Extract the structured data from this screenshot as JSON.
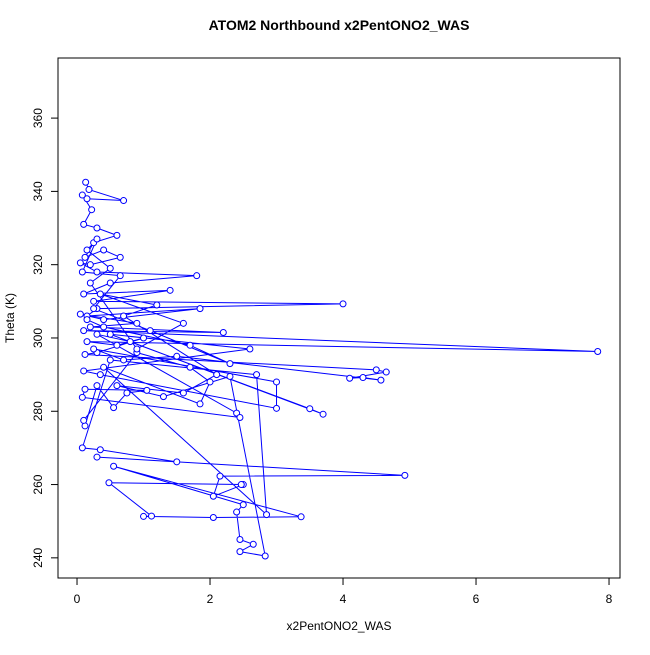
{
  "chart_data": {
    "type": "line",
    "title": "ATOM2 Northbound x2PentONO2_WAS",
    "x_label": "x2PentONO2_WAS",
    "y_label": "Theta (K)",
    "color": "#0000ff",
    "x": [
      0.13,
      0.18,
      0.7,
      0.15,
      0.08,
      0.22,
      0.1,
      0.3,
      0.6,
      0.25,
      0.12,
      0.4,
      0.65,
      0.2,
      0.05,
      0.3,
      1.8,
      0.5,
      0.1,
      1.4,
      0.25,
      4.0,
      0.3,
      0.15,
      1.85,
      0.4,
      0.05,
      0.9,
      0.2,
      2.2,
      0.1,
      7.83,
      0.15,
      0.6,
      1.0,
      0.3,
      0.12,
      4.5,
      4.65,
      4.1,
      4.3,
      4.57,
      1.5,
      0.7,
      0.25,
      3.0,
      3.0,
      0.35,
      0.1,
      2.6,
      0.5,
      3.5,
      3.7,
      0.8,
      0.3,
      2.4,
      2.45,
      0.08,
      0.12,
      1.05,
      0.75,
      0.55,
      0.3,
      0.12,
      0.1,
      0.9,
      1.7,
      2.0,
      1.85,
      0.4,
      2.85,
      2.7,
      0.5,
      0.08,
      0.35,
      1.5,
      0.3,
      4.93,
      2.15,
      2.05,
      2.5,
      2.47,
      0.48,
      1.12,
      1.0,
      2.05,
      3.37,
      0.55,
      2.5,
      2.4,
      2.45,
      2.65,
      2.45,
      2.83,
      2.3,
      1.3,
      0.6,
      1.6,
      2.1,
      0.7,
      1.2,
      0.35,
      1.6,
      0.9,
      0.2,
      0.5,
      0.15,
      0.3,
      0.08,
      0.65,
      0.25,
      1.1,
      2.3,
      1.7,
      0.4,
      0.15
    ],
    "values": [
      342.5,
      340.5,
      337.5,
      338,
      339,
      335,
      331,
      330,
      328,
      326,
      322,
      324,
      322,
      320,
      320.5,
      318,
      317,
      315,
      312,
      313,
      310,
      309.3,
      308,
      306,
      308,
      305,
      306.5,
      304,
      303,
      301.5,
      302,
      296.3,
      299,
      298,
      300,
      296,
      295.5,
      291.3,
      290.7,
      289,
      289.2,
      288.5,
      295,
      294,
      297,
      288,
      280.8,
      290,
      291,
      297,
      301,
      280.7,
      279.2,
      299,
      301,
      279.5,
      278.3,
      283.8,
      286,
      285.7,
      285,
      281,
      287,
      276,
      277.5,
      296,
      292,
      288,
      282,
      292,
      251.8,
      290,
      294,
      270,
      269.5,
      266.2,
      267.5,
      262.5,
      262.3,
      256.8,
      260,
      260,
      260.5,
      251.4,
      251.3,
      251,
      251.2,
      265,
      254.5,
      252.5,
      245,
      243.7,
      241.7,
      240.5,
      289.5,
      284,
      287,
      285,
      290,
      306,
      309,
      312,
      304,
      297,
      315,
      319,
      324,
      327,
      318,
      317,
      308,
      302,
      293,
      298,
      303,
      305
    ],
    "xlim": [
      -0.286,
      8.165
    ],
    "ylim": [
      234.5,
      376.4
    ],
    "xticks": [
      0,
      2,
      4,
      6,
      8
    ],
    "yticks": [
      240,
      260,
      280,
      300,
      320,
      340,
      360
    ]
  }
}
